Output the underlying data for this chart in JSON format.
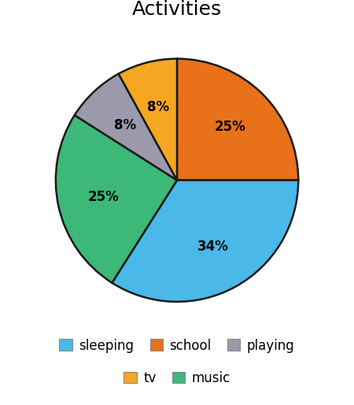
{
  "title": "Activities",
  "wedge_labels": [
    "school",
    "sleeping",
    "music",
    "playing",
    "tv"
  ],
  "wedge_values": [
    25,
    34,
    25,
    8,
    8
  ],
  "wedge_colors": [
    "#e8711a",
    "#4ab8e8",
    "#3cb878",
    "#9a9aaa",
    "#f5a623"
  ],
  "wedge_pcts": [
    "25%",
    "34%",
    "25%",
    "8%",
    "8%"
  ],
  "legend_labels": [
    "sleeping",
    "school",
    "playing",
    "tv",
    "music"
  ],
  "legend_colors": [
    "#4ab8e8",
    "#e8711a",
    "#9a9aaa",
    "#f5a623",
    "#3cb878"
  ],
  "edge_color": "#1a1a1a",
  "edge_width": 1.8,
  "title_fontsize": 18,
  "pct_fontsize": 12,
  "legend_fontsize": 12,
  "start_angle": 90,
  "background_color": "#ffffff"
}
